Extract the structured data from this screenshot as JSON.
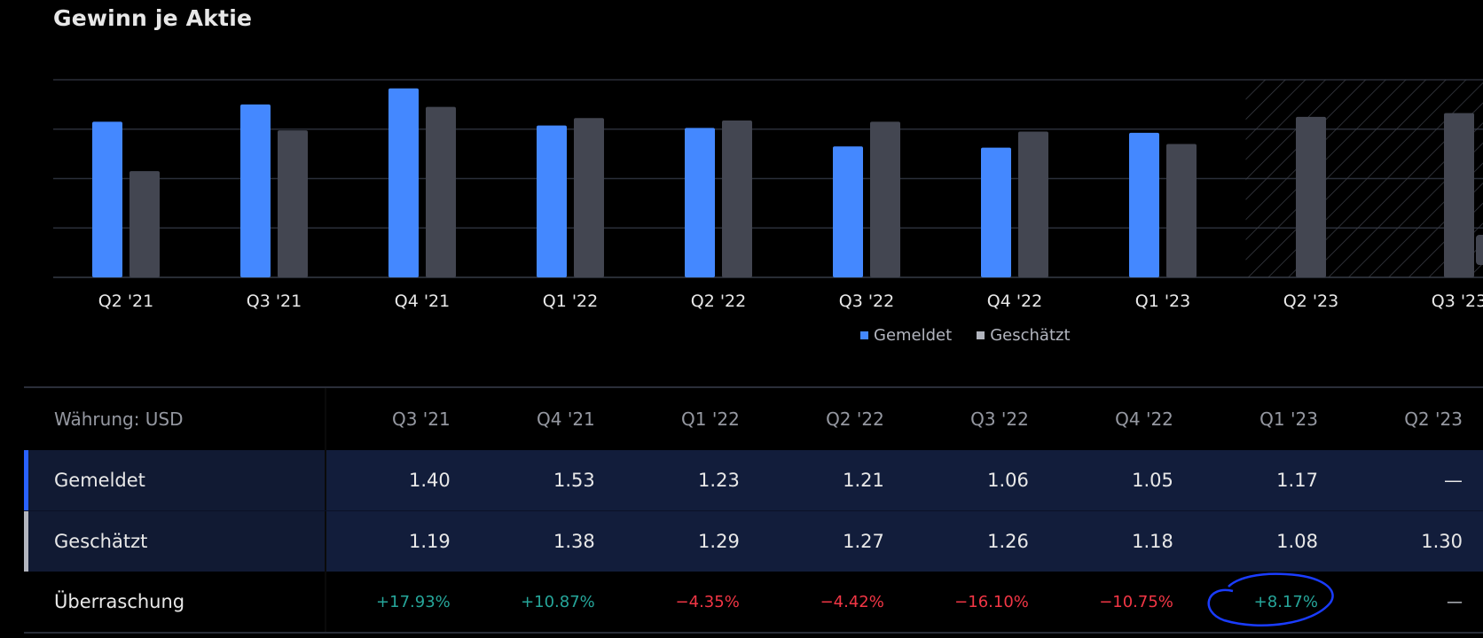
{
  "title": "Gewinn je Aktie",
  "chart_data": {
    "type": "bar",
    "title": "Gewinn je Aktie",
    "categories": [
      "Q2 '21",
      "Q3 '21",
      "Q4 '21",
      "Q1 '22",
      "Q2 '22",
      "Q3 '22",
      "Q4 '22",
      "Q1 '23",
      "Q2 '23",
      "Q3 '23"
    ],
    "series": [
      {
        "name": "Gemeldet",
        "color": "#4488ff",
        "values": [
          1.26,
          1.4,
          1.53,
          1.23,
          1.21,
          1.06,
          1.05,
          1.17,
          null,
          null
        ]
      },
      {
        "name": "Geschätzt",
        "color": "#434651",
        "values": [
          0.86,
          1.19,
          1.38,
          1.29,
          1.27,
          1.26,
          1.18,
          1.08,
          1.3,
          1.33
        ]
      }
    ],
    "forecast_from": "Q2 '23",
    "ylim": [
      0,
      1.6
    ],
    "grid": true,
    "legend": "bottom-center",
    "xlabel": "",
    "ylabel": ""
  },
  "legend": {
    "reported": "Gemeldet",
    "estimated": "Geschätzt"
  },
  "table": {
    "currency_label": "Währung: USD",
    "columns": [
      "Q3 '21",
      "Q4 '21",
      "Q1 '22",
      "Q2 '22",
      "Q3 '22",
      "Q4 '22",
      "Q1 '23",
      "Q2 '23"
    ],
    "rows": [
      {
        "label": "Gemeldet",
        "values": [
          "1.40",
          "1.53",
          "1.23",
          "1.21",
          "1.06",
          "1.05",
          "1.17",
          "—"
        ]
      },
      {
        "label": "Geschätzt",
        "values": [
          "1.19",
          "1.38",
          "1.29",
          "1.27",
          "1.26",
          "1.18",
          "1.08",
          "1.30"
        ]
      },
      {
        "label": "Überraschung",
        "values": [
          "+17.93%",
          "+10.87%",
          "−4.35%",
          "−4.42%",
          "−16.10%",
          "−10.75%",
          "+8.17%",
          "—"
        ]
      }
    ]
  },
  "colors": {
    "reported": "#4488ff",
    "estimated": "#434651",
    "positive": "#26a69a",
    "negative": "#f23645",
    "annotation": "#1a3cff"
  }
}
